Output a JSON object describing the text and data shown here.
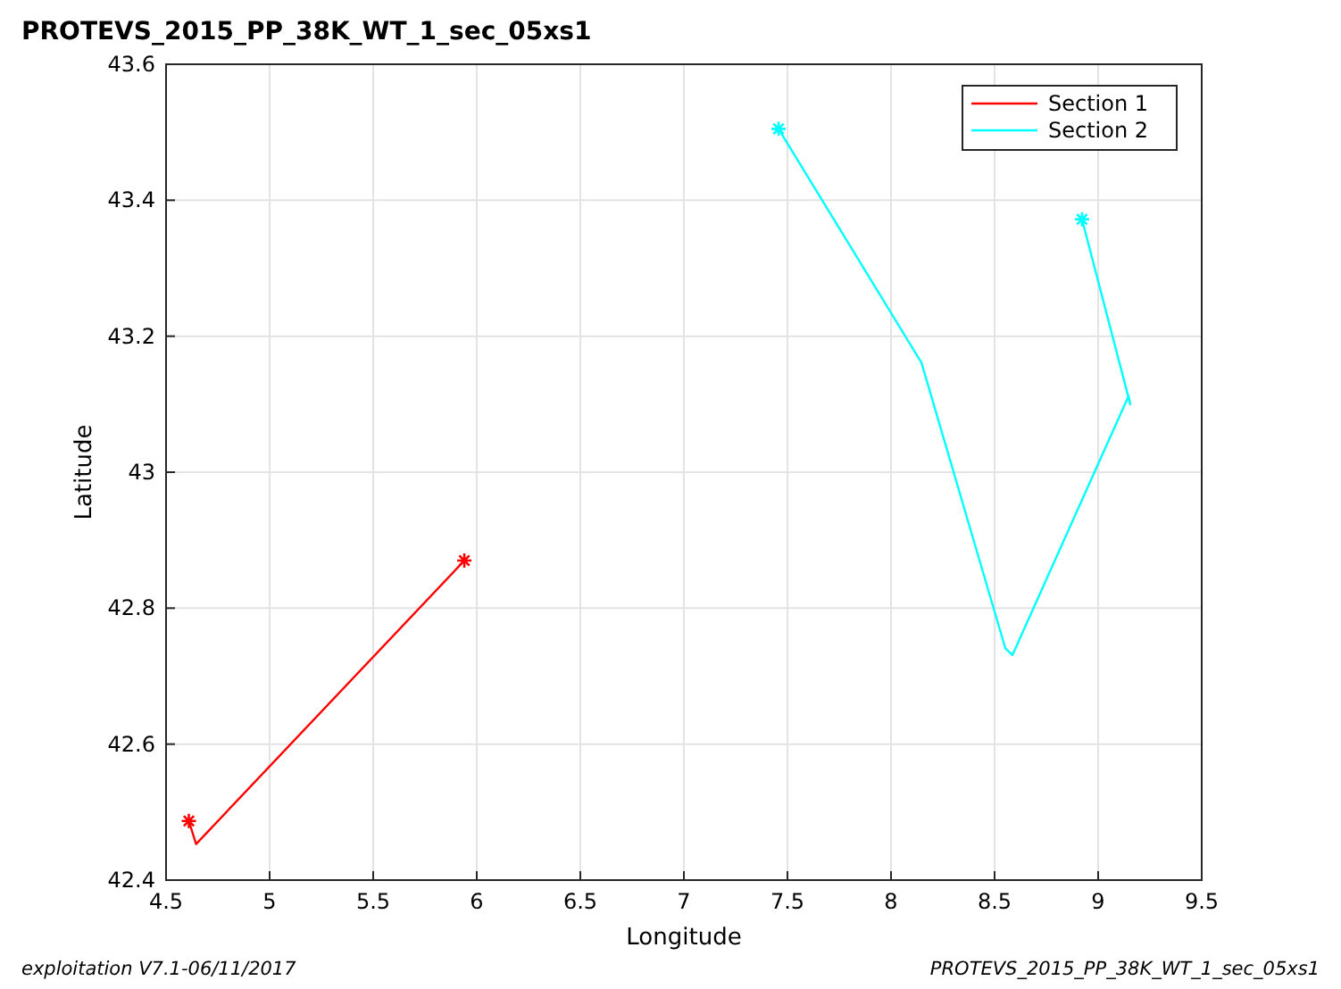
{
  "chart_data": {
    "type": "line",
    "title": "PROTEVS_2015_PP_38K_WT_1_sec_05xs1",
    "xlabel": "Longitude",
    "ylabel": "Latitude",
    "xlim": [
      4.5,
      9.5
    ],
    "xticks": [
      4.5,
      5,
      5.5,
      6,
      6.5,
      7,
      7.5,
      8,
      8.5,
      9,
      9.5
    ],
    "ylim": [
      42.4,
      43.6
    ],
    "yticks": [
      42.4,
      42.6,
      42.8,
      43,
      43.2,
      43.4,
      43.6
    ],
    "grid": true,
    "legend": "top right",
    "series": [
      {
        "name": "Section 1",
        "color": "#ff0000",
        "marker": "none",
        "x": [
          4.61,
          4.645,
          5.94
        ],
        "values": [
          42.487,
          42.453,
          42.87
        ]
      },
      {
        "name": "Section 2",
        "color": "#00ffff",
        "marker": "none",
        "x": [
          7.457,
          8.147,
          8.552,
          8.586,
          9.147,
          9.155,
          8.922
        ],
        "values": [
          43.505,
          43.161,
          42.741,
          42.731,
          43.112,
          43.1,
          43.372
        ]
      },
      {
        "color": "#ff0000",
        "type": "scatter",
        "marker": "cross",
        "x": [
          4.61,
          5.94
        ],
        "values": [
          42.487,
          42.87
        ]
      },
      {
        "color": "#00ffff",
        "type": "scatter",
        "marker": "cross",
        "x": [
          7.457,
          8.922
        ],
        "values": [
          43.505,
          43.372
        ]
      }
    ],
    "annotations": [
      "exploitation V7.1-06/11/2017",
      "PROTEVS_2015_PP_38K_WT_1_sec_05xs1"
    ]
  }
}
